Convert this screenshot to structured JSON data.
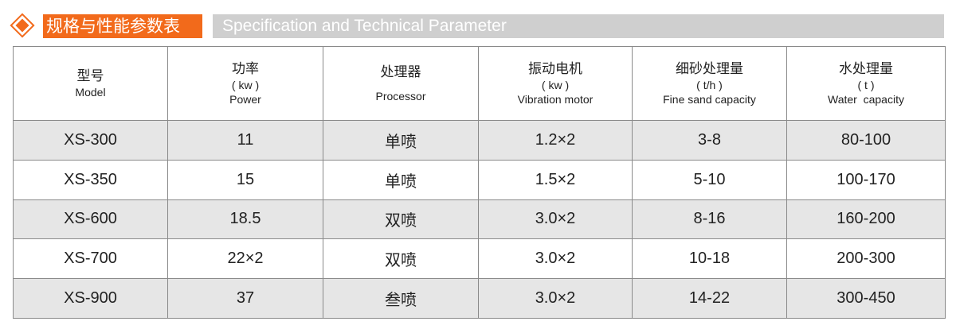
{
  "banner": {
    "title_cn": "规格与性能参数表",
    "title_en": "Specification and Technical Parameter",
    "accent": "#f26a1b"
  },
  "table": {
    "headers": [
      {
        "cn": "型号",
        "unit": "",
        "en": "Model"
      },
      {
        "cn": "功率",
        "unit": "( kw )",
        "en": "Power"
      },
      {
        "cn": "处理器",
        "unit": "",
        "en": "Processor"
      },
      {
        "cn": "振动电机",
        "unit": "( kw )",
        "en": "Vibration motor"
      },
      {
        "cn": "细砂处理量",
        "unit": "( t/h )",
        "en": "Fine sand capacity"
      },
      {
        "cn": "水处理量",
        "unit": "( t )",
        "en": "Water  capacity"
      }
    ],
    "rows": [
      [
        "XS-300",
        "11",
        "单喷",
        "1.2×2",
        "3-8",
        "80-100"
      ],
      [
        "XS-350",
        "15",
        "单喷",
        "1.5×2",
        "5-10",
        "100-170"
      ],
      [
        "XS-600",
        "18.5",
        "双喷",
        "3.0×2",
        "8-16",
        "160-200"
      ],
      [
        "XS-700",
        "22×2",
        "双喷",
        "3.0×2",
        "10-18",
        "200-300"
      ],
      [
        "XS-900",
        "37",
        "叁喷",
        "3.0×2",
        "14-22",
        "300-450"
      ]
    ]
  }
}
